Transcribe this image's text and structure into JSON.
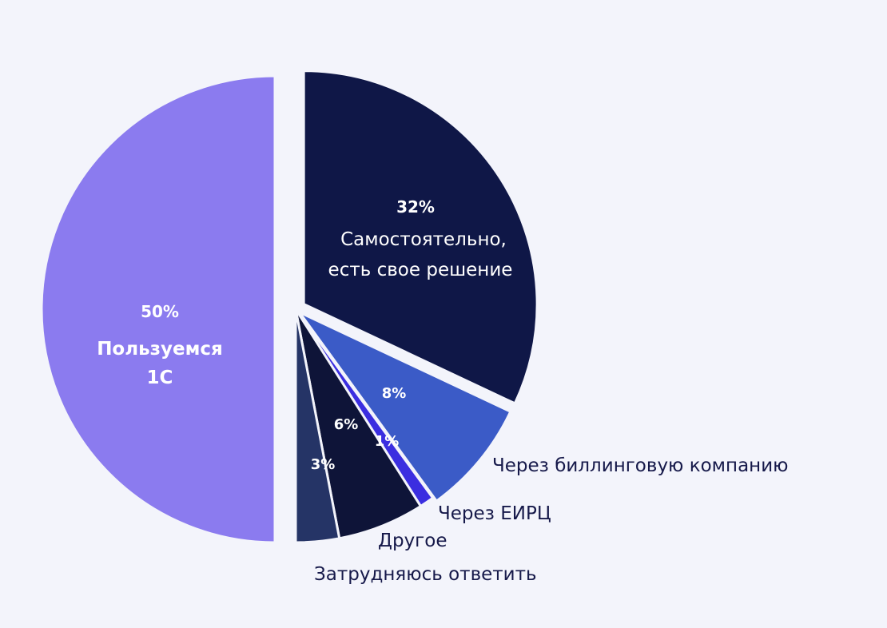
{
  "chart_data": {
    "type": "pie",
    "slices": [
      {
        "name": "Самостоятельно, есть свое решение",
        "value": 32,
        "label": "32%",
        "color": "#0f1747"
      },
      {
        "name": "Через биллинговую компанию",
        "value": 8,
        "label": "8%",
        "color": "#3b5bc7"
      },
      {
        "name": "Через ЕИРЦ",
        "value": 1,
        "label": "1%",
        "color": "#3b2ee0"
      },
      {
        "name": "Другое",
        "value": 6,
        "label": "6%",
        "color": "#0e1438"
      },
      {
        "name": "Затрудняюсь ответить",
        "value": 3,
        "label": "3%",
        "color": "#253466"
      },
      {
        "name": "Пользуемся 1С",
        "value": 50,
        "label": "50%",
        "color": "#8b7bef"
      }
    ],
    "inside_names": {
      "samostoyatelno_line1": "Самостоятельно,",
      "samostoyatelno_line2": "есть свое решение",
      "pk1c_line1": "Пользуемся",
      "pk1c_line2": "1С"
    },
    "outside_names": {
      "billing": "Через биллинговую компанию",
      "eirc": "Через ЕИРЦ",
      "other": "Другое",
      "hard": "Затрудняюсь ответить"
    }
  }
}
